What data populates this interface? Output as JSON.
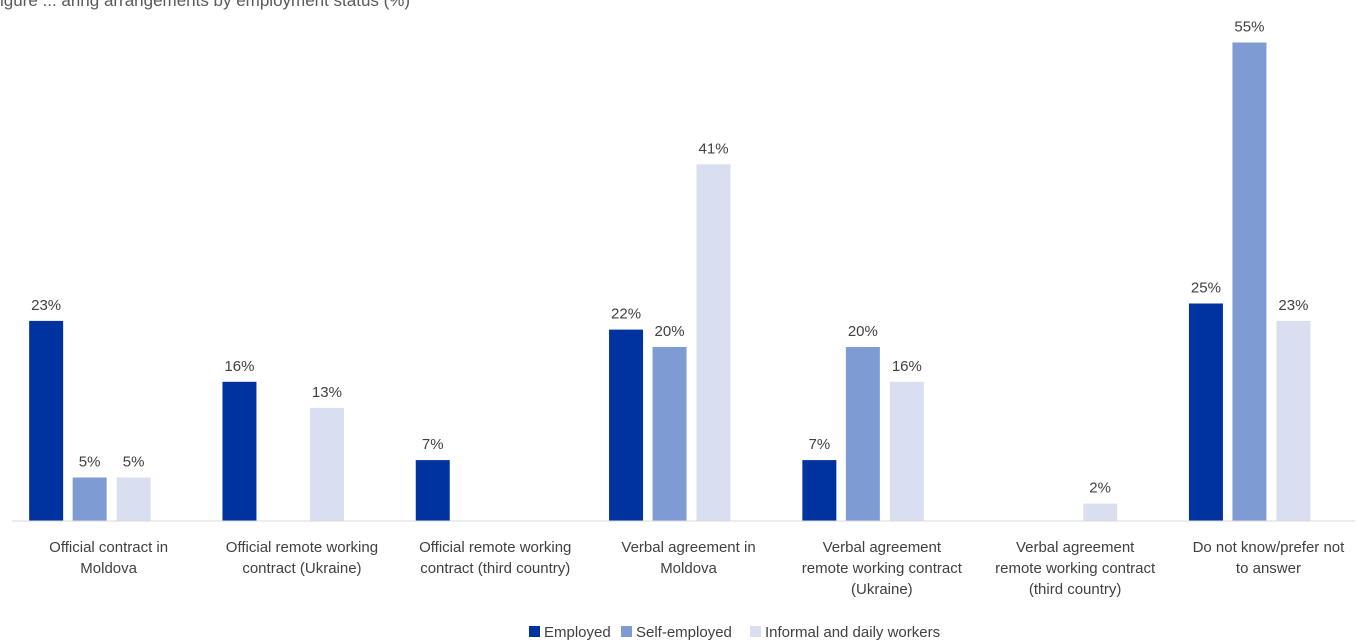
{
  "chart_data": {
    "type": "bar",
    "title": "igure ... aring arrangements by employment status (%)",
    "categories": [
      [
        "Official contract in",
        "Moldova"
      ],
      [
        "Official remote working",
        "contract (Ukraine)"
      ],
      [
        "Official remote working",
        "contract (third country)"
      ],
      [
        "Verbal agreement in",
        "Moldova"
      ],
      [
        "Verbal agreement",
        "remote working contract",
        "(Ukraine)"
      ],
      [
        "Verbal agreement",
        "remote working contract",
        "(third country)"
      ],
      [
        "Do not know/prefer not",
        "to answer"
      ]
    ],
    "series": [
      {
        "name": "Employed",
        "color": "#0033a0",
        "values": [
          23,
          16,
          7,
          22,
          7,
          null,
          25
        ]
      },
      {
        "name": "Self-employed",
        "color": "#7f9bd4",
        "values": [
          5,
          null,
          null,
          20,
          20,
          null,
          55
        ]
      },
      {
        "name": "Informal and daily workers",
        "color": "#d9dff0",
        "values": [
          5,
          13,
          null,
          41,
          16,
          2,
          23
        ]
      }
    ],
    "value_suffix": "%",
    "ylim": [
      0,
      55
    ],
    "grid": false,
    "legend_position": "bottom"
  }
}
